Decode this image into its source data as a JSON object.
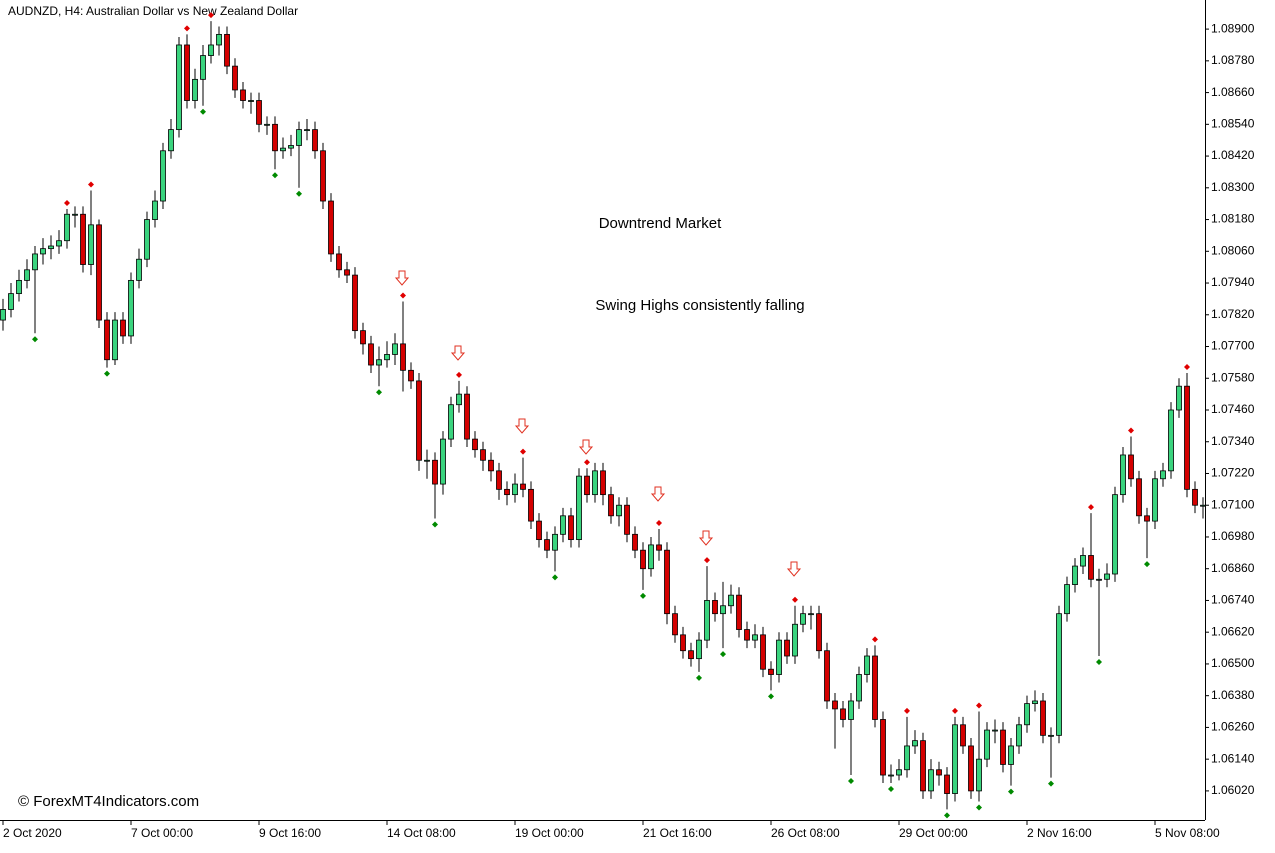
{
  "chart_data": {
    "type": "candlestick",
    "title": "AUDNZD, H4:  Australian Dollar vs New Zealand Dollar",
    "annotations": [
      "Downtrend Market",
      "Swing Highs consistently falling"
    ],
    "watermark": "© ForexMT4Indicators.com",
    "up_color": "#3ad47e",
    "down_color": "#d40000",
    "fractal_up_color": "#e00000",
    "fractal_down_color": "#008a00",
    "ylim": [
      1.0591,
      1.0901
    ],
    "yticks": [
      {
        "value": 1.089,
        "label": "1.08900"
      },
      {
        "value": 1.0878,
        "label": "1.08780"
      },
      {
        "value": 1.0866,
        "label": "1.08660"
      },
      {
        "value": 1.0854,
        "label": "1.08540"
      },
      {
        "value": 1.0842,
        "label": "1.08420"
      },
      {
        "value": 1.083,
        "label": "1.08300"
      },
      {
        "value": 1.0818,
        "label": "1.08180"
      },
      {
        "value": 1.0806,
        "label": "1.08060"
      },
      {
        "value": 1.0794,
        "label": "1.07940"
      },
      {
        "value": 1.0782,
        "label": "1.07820"
      },
      {
        "value": 1.077,
        "label": "1.07700"
      },
      {
        "value": 1.0758,
        "label": "1.07580"
      },
      {
        "value": 1.0746,
        "label": "1.07460"
      },
      {
        "value": 1.0734,
        "label": "1.07340"
      },
      {
        "value": 1.0722,
        "label": "1.07220"
      },
      {
        "value": 1.071,
        "label": "1.07100"
      },
      {
        "value": 1.0698,
        "label": "1.06980"
      },
      {
        "value": 1.0686,
        "label": "1.06860"
      },
      {
        "value": 1.0674,
        "label": "1.06740"
      },
      {
        "value": 1.0662,
        "label": "1.06620"
      },
      {
        "value": 1.065,
        "label": "1.06500"
      },
      {
        "value": 1.0638,
        "label": "1.06380"
      },
      {
        "value": 1.0626,
        "label": "1.06260"
      },
      {
        "value": 1.0614,
        "label": "1.06140"
      },
      {
        "value": 1.0602,
        "label": "1.06020"
      }
    ],
    "xticks": [
      {
        "value": 0,
        "label": "2 Oct 2020"
      },
      {
        "value": 16,
        "label": "7 Oct 00:00"
      },
      {
        "value": 32,
        "label": "9 Oct 16:00"
      },
      {
        "value": 48,
        "label": "14 Oct 08:00"
      },
      {
        "value": 64,
        "label": "19 Oct 00:00"
      },
      {
        "value": 80,
        "label": "21 Oct 16:00"
      },
      {
        "value": 96,
        "label": "26 Oct 08:00"
      },
      {
        "value": 112,
        "label": "29 Oct 00:00"
      },
      {
        "value": 128,
        "label": "2 Nov 16:00"
      },
      {
        "value": 144,
        "label": "5 Nov 08:00"
      }
    ],
    "open": [
      1.078,
      1.0784,
      1.079,
      1.0795,
      1.0799,
      1.0805,
      1.0807,
      1.0808,
      1.081,
      1.082,
      1.082,
      1.0801,
      1.0816,
      1.078,
      1.0765,
      1.078,
      1.0774,
      1.0795,
      1.0803,
      1.0818,
      1.0825,
      1.0844,
      1.0852,
      1.0884,
      1.0863,
      1.0871,
      1.088,
      1.0884,
      1.0888,
      1.0876,
      1.0867,
      1.0863,
      1.0863,
      1.0854,
      1.0854,
      1.0844,
      1.0845,
      1.0846,
      1.0852,
      1.0852,
      1.0844,
      1.0825,
      1.0805,
      1.0799,
      1.0797,
      1.0776,
      1.0771,
      1.0763,
      1.0765,
      1.0767,
      1.0771,
      1.0761,
      1.0757,
      1.0727,
      1.0727,
      1.0718,
      1.0735,
      1.0748,
      1.0752,
      1.0735,
      1.0731,
      1.0727,
      1.0723,
      1.0716,
      1.0714,
      1.0718,
      1.0716,
      1.0704,
      1.0697,
      1.0693,
      1.0699,
      1.0706,
      1.0697,
      1.0721,
      1.0714,
      1.0723,
      1.0714,
      1.0706,
      1.071,
      1.0699,
      1.0693,
      1.0686,
      1.0695,
      1.0693,
      1.0669,
      1.0661,
      1.0655,
      1.0652,
      1.0659,
      1.0674,
      1.0669,
      1.0672,
      1.0676,
      1.0663,
      1.0659,
      1.0661,
      1.0648,
      1.0646,
      1.0659,
      1.0653,
      1.0665,
      1.0669,
      1.0669,
      1.0655,
      1.0636,
      1.0633,
      1.0629,
      1.0636,
      1.0646,
      1.0653,
      1.0629,
      1.0608,
      1.0608,
      1.061,
      1.0619,
      1.0621,
      1.0602,
      1.061,
      1.0608,
      1.0601,
      1.0627,
      1.0619,
      1.0602,
      1.0614,
      1.0625,
      1.0625,
      1.0612,
      1.0619,
      1.0627,
      1.0635,
      1.0636,
      1.0623,
      1.0623,
      1.0669,
      1.068,
      1.0687,
      1.0691,
      1.0682,
      1.0682,
      1.0684,
      1.0714,
      1.0729,
      1.072,
      1.0706,
      1.0704,
      1.072,
      1.0723,
      1.0746,
      1.0755,
      1.0716,
      1.071
    ],
    "high": [
      1.0788,
      1.0794,
      1.0799,
      1.0803,
      1.0808,
      1.0811,
      1.0812,
      1.0814,
      1.0822,
      1.0823,
      1.0823,
      1.0829,
      1.0818,
      1.0783,
      1.0783,
      1.0783,
      1.0798,
      1.0807,
      1.0821,
      1.0829,
      1.0847,
      1.0856,
      1.0887,
      1.0888,
      1.0875,
      1.0884,
      1.0893,
      1.0891,
      1.0891,
      1.0879,
      1.087,
      1.0866,
      1.0866,
      1.0857,
      1.0857,
      1.0849,
      1.085,
      1.0855,
      1.0856,
      1.0855,
      1.0847,
      1.0828,
      1.0808,
      1.0802,
      1.08,
      1.0779,
      1.0774,
      1.077,
      1.0772,
      1.0775,
      1.0787,
      1.0764,
      1.076,
      1.0731,
      1.073,
      1.0738,
      1.0751,
      1.0757,
      1.0755,
      1.0738,
      1.0734,
      1.073,
      1.0726,
      1.0719,
      1.0722,
      1.0728,
      1.0719,
      1.0707,
      1.07,
      1.0702,
      1.0709,
      1.0709,
      1.0724,
      1.0724,
      1.0726,
      1.0726,
      1.0717,
      1.0713,
      1.0713,
      1.0702,
      1.0696,
      1.0698,
      1.0701,
      1.0696,
      1.0672,
      1.0664,
      1.0658,
      1.0662,
      1.0687,
      1.0677,
      1.0681,
      1.068,
      1.0679,
      1.0666,
      1.0665,
      1.0664,
      1.0651,
      1.0662,
      1.0662,
      1.0672,
      1.0672,
      1.0672,
      1.0672,
      1.0658,
      1.0639,
      1.0636,
      1.0639,
      1.0649,
      1.0656,
      1.0657,
      1.0632,
      1.0612,
      1.0614,
      1.063,
      1.0625,
      1.0624,
      1.0614,
      1.0613,
      1.0611,
      1.063,
      1.063,
      1.0622,
      1.0632,
      1.0628,
      1.0629,
      1.0628,
      1.0622,
      1.063,
      1.0638,
      1.064,
      1.0639,
      1.0626,
      1.0672,
      1.0683,
      1.069,
      1.0694,
      1.0707,
      1.0686,
      1.0688,
      1.0717,
      1.0732,
      1.0736,
      1.0723,
      1.0709,
      1.0723,
      1.0726,
      1.0749,
      1.0758,
      1.076,
      1.0719,
      1.0713
    ],
    "low": [
      1.0776,
      1.0781,
      1.0787,
      1.0792,
      1.0775,
      1.0801,
      1.0803,
      1.0805,
      1.0807,
      1.0815,
      1.0798,
      1.0797,
      1.0777,
      1.0762,
      1.0763,
      1.0771,
      1.0771,
      1.0792,
      1.08,
      1.0815,
      1.0822,
      1.0841,
      1.0849,
      1.086,
      1.086,
      1.0861,
      1.0877,
      1.088,
      1.0873,
      1.0864,
      1.086,
      1.0858,
      1.0851,
      1.085,
      1.0837,
      1.0841,
      1.0842,
      1.083,
      1.0848,
      1.0841,
      1.0822,
      1.0802,
      1.0796,
      1.0794,
      1.0773,
      1.0767,
      1.076,
      1.0755,
      1.0762,
      1.0763,
      1.0753,
      1.0754,
      1.0723,
      1.072,
      1.0705,
      1.0714,
      1.0732,
      1.0745,
      1.0732,
      1.0728,
      1.0723,
      1.0719,
      1.0712,
      1.071,
      1.0711,
      1.0713,
      1.0701,
      1.0694,
      1.069,
      1.0685,
      1.0696,
      1.0694,
      1.0694,
      1.0711,
      1.0711,
      1.071,
      1.0703,
      1.0702,
      1.0696,
      1.069,
      1.0678,
      1.0683,
      1.0689,
      1.0665,
      1.0658,
      1.0652,
      1.0649,
      1.0647,
      1.0656,
      1.0666,
      1.0656,
      1.0669,
      1.066,
      1.0656,
      1.0656,
      1.0645,
      1.064,
      1.0643,
      1.065,
      1.065,
      1.0662,
      1.0663,
      1.0652,
      1.0633,
      1.0618,
      1.0626,
      1.0608,
      1.0633,
      1.0643,
      1.0626,
      1.0605,
      1.0605,
      1.0606,
      1.0607,
      1.0616,
      1.0599,
      1.0599,
      1.0604,
      1.0595,
      1.0598,
      1.0616,
      1.0599,
      1.0598,
      1.0611,
      1.062,
      1.0609,
      1.0604,
      1.0616,
      1.0624,
      1.0632,
      1.062,
      1.0607,
      1.062,
      1.0666,
      1.0677,
      1.0684,
      1.0679,
      1.0653,
      1.0679,
      1.0681,
      1.0711,
      1.0717,
      1.0703,
      1.069,
      1.0701,
      1.0717,
      1.072,
      1.0743,
      1.0713,
      1.0707,
      1.0705
    ],
    "close": [
      1.0784,
      1.079,
      1.0795,
      1.0799,
      1.0805,
      1.0807,
      1.0808,
      1.081,
      1.082,
      1.082,
      1.0801,
      1.0816,
      1.078,
      1.0765,
      1.078,
      1.0774,
      1.0795,
      1.0803,
      1.0818,
      1.0825,
      1.0844,
      1.0852,
      1.0884,
      1.0863,
      1.0871,
      1.088,
      1.0884,
      1.0888,
      1.0876,
      1.0867,
      1.0863,
      1.0863,
      1.0854,
      1.0854,
      1.0844,
      1.0845,
      1.0846,
      1.0852,
      1.0852,
      1.0844,
      1.0825,
      1.0805,
      1.0799,
      1.0797,
      1.0776,
      1.0771,
      1.0763,
      1.0765,
      1.0767,
      1.0771,
      1.0761,
      1.0757,
      1.0727,
      1.0727,
      1.0718,
      1.0735,
      1.0748,
      1.0752,
      1.0735,
      1.0731,
      1.0727,
      1.0723,
      1.0716,
      1.0714,
      1.0718,
      1.0716,
      1.0704,
      1.0697,
      1.0693,
      1.0699,
      1.0706,
      1.0697,
      1.0721,
      1.0714,
      1.0723,
      1.0714,
      1.0706,
      1.071,
      1.0699,
      1.0693,
      1.0686,
      1.0695,
      1.0693,
      1.0669,
      1.0661,
      1.0655,
      1.0652,
      1.0659,
      1.0674,
      1.0669,
      1.0672,
      1.0676,
      1.0663,
      1.0659,
      1.0661,
      1.0648,
      1.0646,
      1.0659,
      1.0653,
      1.0665,
      1.0669,
      1.0669,
      1.0655,
      1.0636,
      1.0633,
      1.0629,
      1.0636,
      1.0646,
      1.0653,
      1.0629,
      1.0608,
      1.0608,
      1.061,
      1.0619,
      1.0621,
      1.0602,
      1.061,
      1.0608,
      1.0601,
      1.0627,
      1.0619,
      1.0602,
      1.0614,
      1.0625,
      1.0625,
      1.0612,
      1.0619,
      1.0627,
      1.0635,
      1.0636,
      1.0623,
      1.0623,
      1.0669,
      1.068,
      1.0687,
      1.0691,
      1.0682,
      1.0682,
      1.0684,
      1.0714,
      1.0729,
      1.072,
      1.0706,
      1.0704,
      1.072,
      1.0723,
      1.0746,
      1.0755,
      1.0716,
      1.071,
      1.071
    ],
    "fractals_up": [
      8,
      11,
      23,
      26,
      50,
      57,
      65,
      73,
      82,
      88,
      99,
      109,
      113,
      119,
      122,
      136,
      141,
      148
    ],
    "fractals_down": [
      4,
      13,
      25,
      34,
      37,
      47,
      54,
      69,
      80,
      87,
      90,
      96,
      106,
      111,
      118,
      122,
      126,
      131,
      137,
      143
    ]
  }
}
